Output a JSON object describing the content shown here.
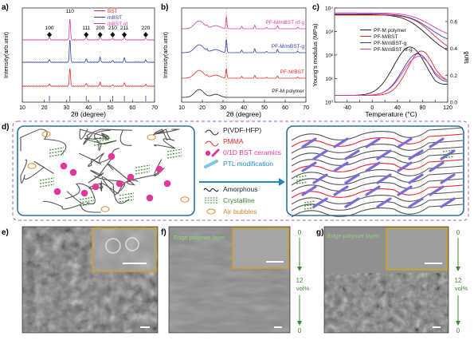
{
  "panel_labels": {
    "a": "a)",
    "b": "b)",
    "c": "c)",
    "d": "d)",
    "e": "e)",
    "f": "f)",
    "g": "g)"
  },
  "colors": {
    "red": "#e8262a",
    "blue": "#2b3fa8",
    "magenta": "#e0379b",
    "black": "#1a1a1a",
    "green": "#3a8d2e",
    "pink": "#f071b5",
    "orange": "#d98a2c",
    "dashed_border": "#9b5fb8",
    "frame_blue": "#2e6ea3",
    "inset_border": "#d4a21c"
  },
  "chart_data": [
    {
      "id": "a",
      "type": "line",
      "xlabel": "2θ (degree)",
      "ylabel": "Intensity(arb.unit)",
      "xlim": [
        10,
        70
      ],
      "xticks": [
        10,
        20,
        30,
        40,
        50,
        60,
        70
      ],
      "series": [
        {
          "name": "BST",
          "color": "#e8262a"
        },
        {
          "name": "mBST",
          "color": "#2b3fa8"
        },
        {
          "name": "mBST nf",
          "color": "#e0379b"
        }
      ],
      "peaks": [
        {
          "label": "100",
          "x": 22.3
        },
        {
          "label": "110",
          "x": 31.6
        },
        {
          "label": "111",
          "x": 39.0
        },
        {
          "label": "200",
          "x": 45.3
        },
        {
          "label": "210",
          "x": 51.0
        },
        {
          "label": "211",
          "x": 56.3
        },
        {
          "label": "220",
          "x": 66.0
        }
      ]
    },
    {
      "id": "b",
      "type": "line",
      "xlabel": "2θ (degree)",
      "ylabel": "Intensity(arb.unit)",
      "xlim": [
        10,
        70
      ],
      "xticks": [
        10,
        20,
        30,
        40,
        50,
        60,
        70
      ],
      "reference_line_x": 31.6,
      "series": [
        {
          "name": "PF-M/mBST nf-g",
          "color": "#e0379b"
        },
        {
          "name": "PF-M/mBST-g",
          "color": "#2b3fa8"
        },
        {
          "name": "PF-M/BST",
          "color": "#e8262a"
        },
        {
          "name": "PF-M polymer",
          "color": "#1a1a1a"
        }
      ]
    },
    {
      "id": "c",
      "type": "line",
      "xlabel": "Temperature (°C)",
      "ylabel": "Young's modulus (MPa)",
      "y2label": "tanδ",
      "xlim": [
        -60,
        120
      ],
      "xticks": [
        -40,
        -20,
        0,
        20,
        40,
        60,
        80,
        100,
        120
      ],
      "ylim": [
        1,
        10000
      ],
      "yscale": "log",
      "yticks": [
        "10⁰",
        "10¹",
        "10²",
        "10³",
        "10⁴"
      ],
      "y2lim": [
        0,
        0.7
      ],
      "y2ticks": [
        "0.0",
        "0.2",
        "0.4",
        "0.6"
      ],
      "series": [
        {
          "name": "PF-M polymer",
          "color": "#1a1a1a"
        },
        {
          "name": "PF-M/BST",
          "color": "#e8262a"
        },
        {
          "name": "PF-M/mBST-g",
          "color": "#2b3fa8"
        },
        {
          "name": "PF-M/mBST nf-g",
          "color": "#e0379b"
        }
      ]
    }
  ],
  "schematic": {
    "legend": [
      {
        "label": "P(VDF-HFP)",
        "color": "#222222"
      },
      {
        "label": "PMMA",
        "color": "#e8262a"
      },
      {
        "label": "0/1D BST ceramics",
        "color": "#e0379b"
      },
      {
        "label": "PTL modification",
        "color": "#1e88c8"
      },
      {
        "label": "Amorphous",
        "color": "#222222"
      },
      {
        "label": "Crystalline",
        "color": "#3a8d2e"
      },
      {
        "label": "Air bubbles",
        "color": "#d98a2c"
      }
    ]
  },
  "sem": {
    "f_edge_label": "Edge polymer layer",
    "g_edge_label": "Edge polymer layer",
    "gradient_top": "0",
    "gradient_mid": "12",
    "gradient_unit": "vol%",
    "gradient_bottom": "0"
  }
}
